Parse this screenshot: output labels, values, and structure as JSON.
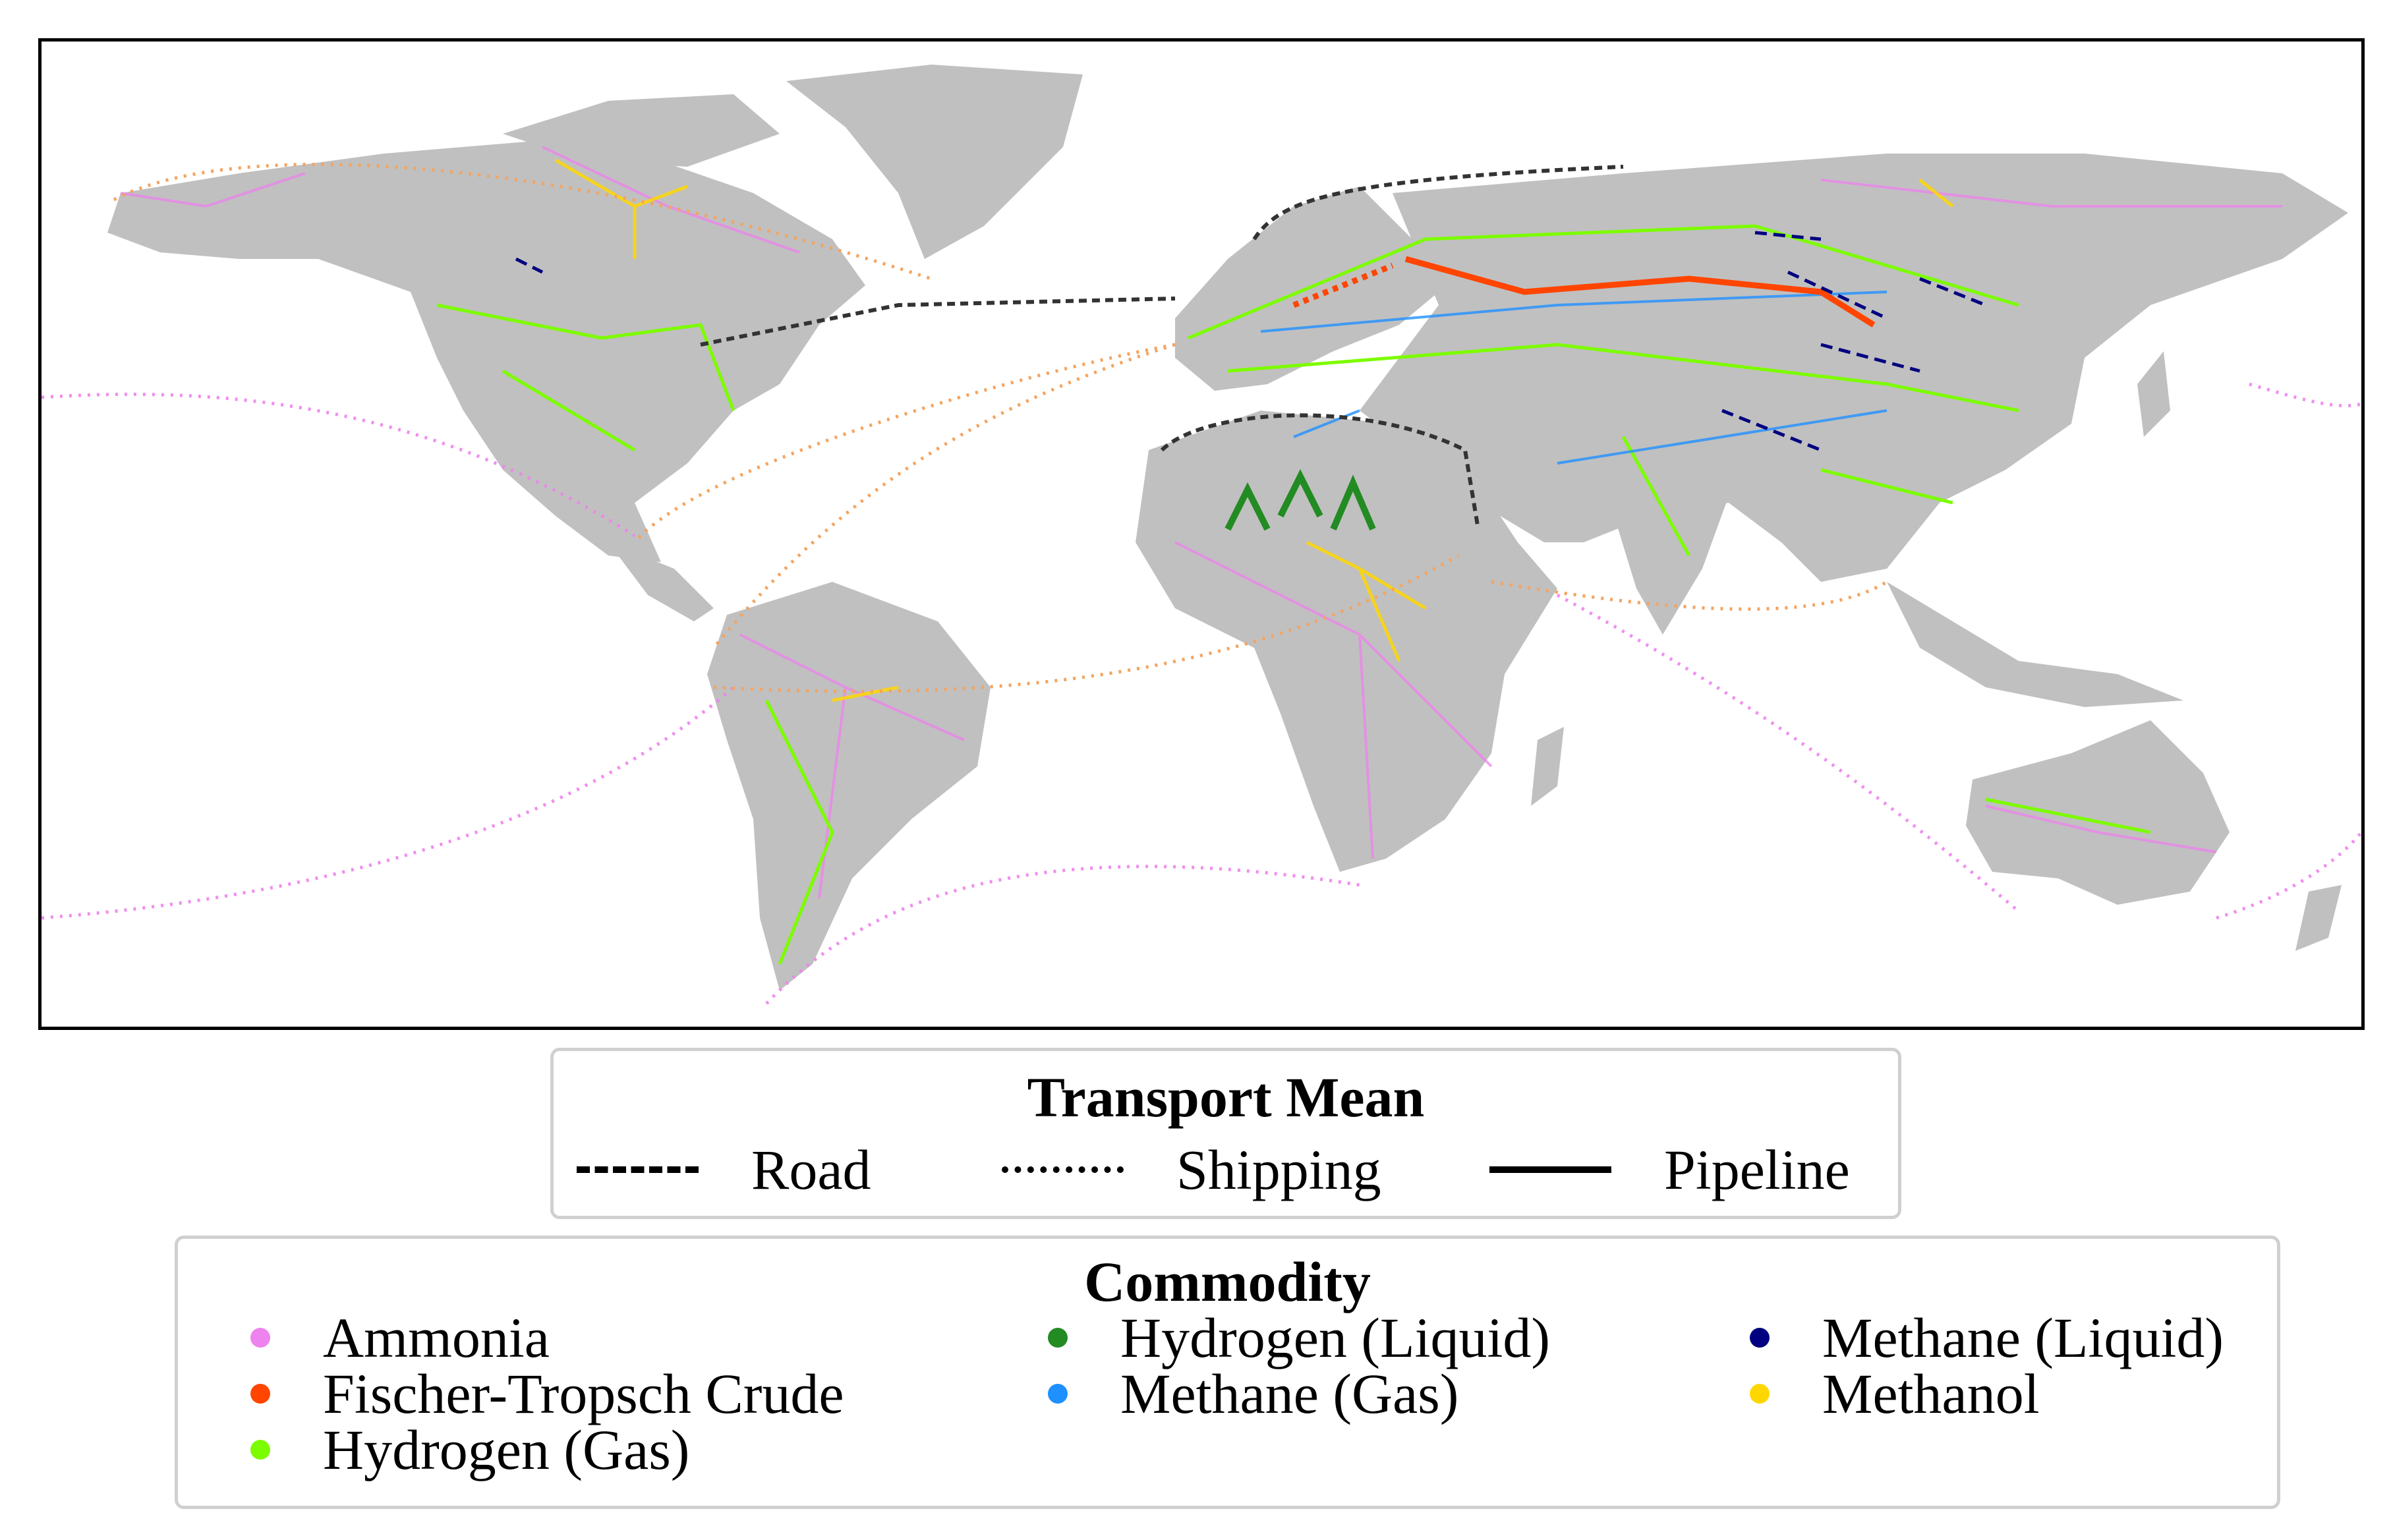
{
  "map": {
    "land_color": "#c0c0c0",
    "border_color": "#000000"
  },
  "transport_legend": {
    "title": "Transport Mean",
    "items": [
      {
        "label": "Road",
        "style": "dashed"
      },
      {
        "label": "Shipping",
        "style": "dotted"
      },
      {
        "label": "Pipeline",
        "style": "solid"
      }
    ]
  },
  "commodity_legend": {
    "title": "Commodity",
    "items": [
      {
        "label": "Ammonia",
        "color": "#ee82ee"
      },
      {
        "label": "Fischer-Tropsch Crude",
        "color": "#ff4500"
      },
      {
        "label": "Hydrogen (Gas)",
        "color": "#7cfc00"
      },
      {
        "label": "Hydrogen (Liquid)",
        "color": "#228b22"
      },
      {
        "label": "Methane (Gas)",
        "color": "#1e90ff"
      },
      {
        "label": "Methane (Liquid)",
        "color": "#000080"
      },
      {
        "label": "Methanol",
        "color": "#ffd700"
      }
    ]
  }
}
